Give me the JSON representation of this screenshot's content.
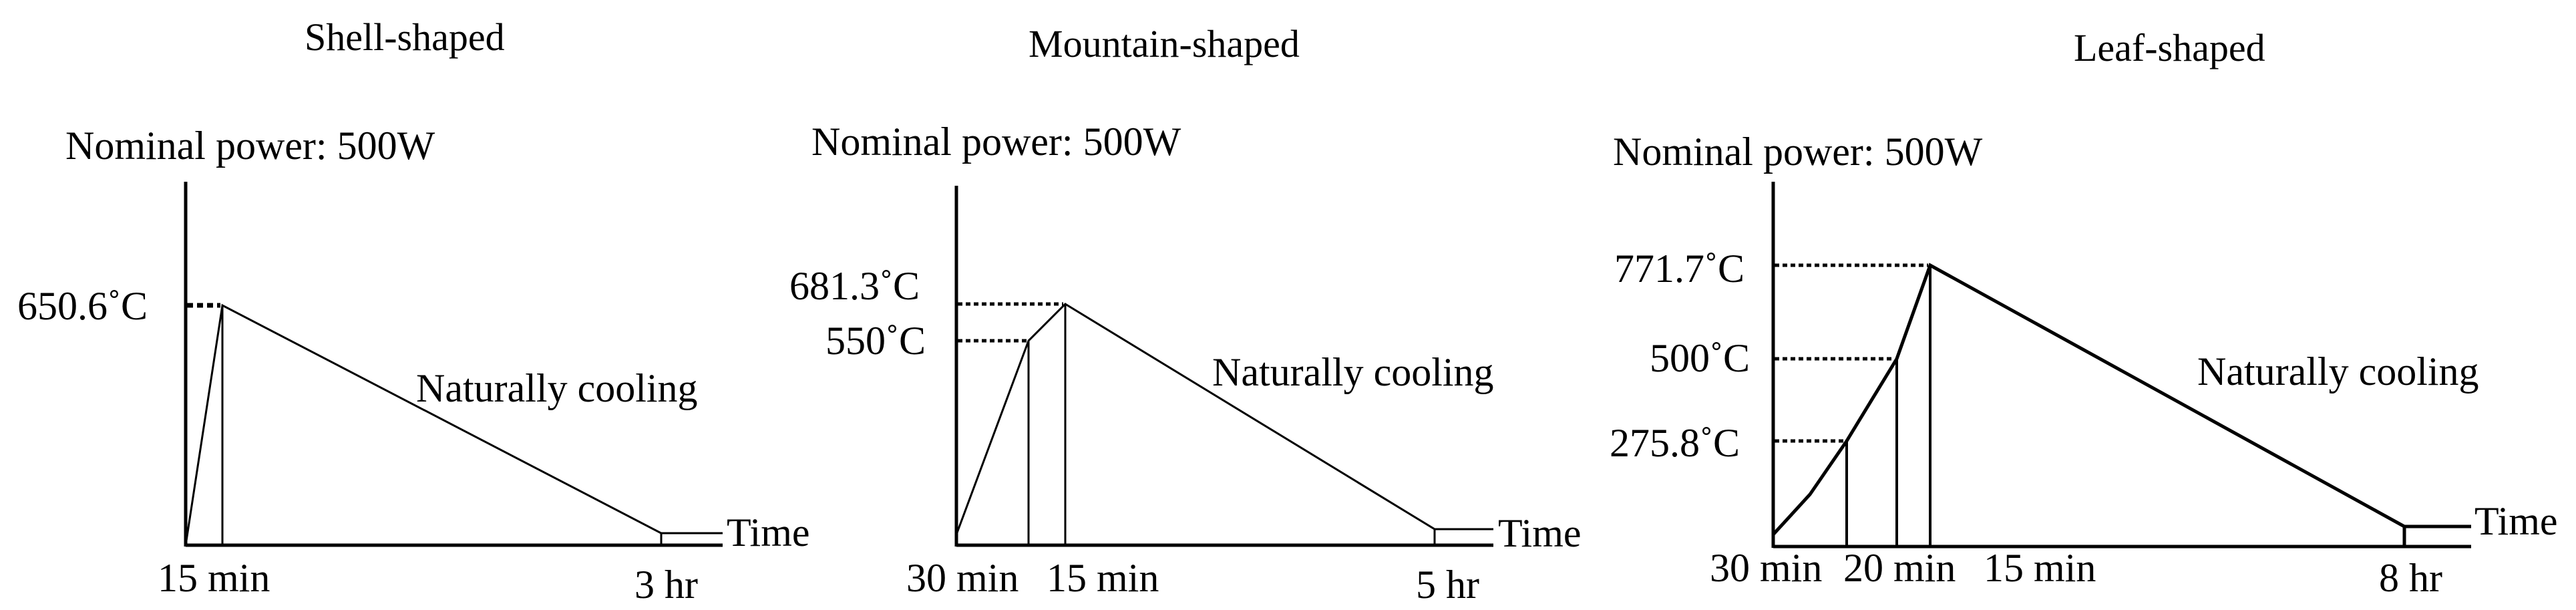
{
  "line_color": "#000000",
  "background_color": "#ffffff",
  "panels": [
    {
      "title": "Shell-shaped",
      "power_label": "Nominal power: 500W",
      "curve_label": "Naturally  cooling",
      "axis_label": "Time",
      "temps": [
        "650.6˚C"
      ],
      "times": [
        "15 min",
        "3 hr"
      ]
    },
    {
      "title": "Mountain-shaped",
      "power_label": "Nominal power: 500W",
      "curve_label": "Naturally  cooling",
      "axis_label": "Time",
      "temps": [
        "681.3˚C",
        "550˚C"
      ],
      "times": [
        "30 min",
        "15 min",
        "5 hr"
      ]
    },
    {
      "title": "Leaf-shaped",
      "power_label": "Nominal power: 500W",
      "curve_label": "Naturally  cooling",
      "axis_label": "Time",
      "temps": [
        "771.7˚C",
        "500˚C",
        "275.8˚C"
      ],
      "times": [
        "30 min",
        "20 min",
        "15 min",
        "8 hr"
      ]
    }
  ]
}
